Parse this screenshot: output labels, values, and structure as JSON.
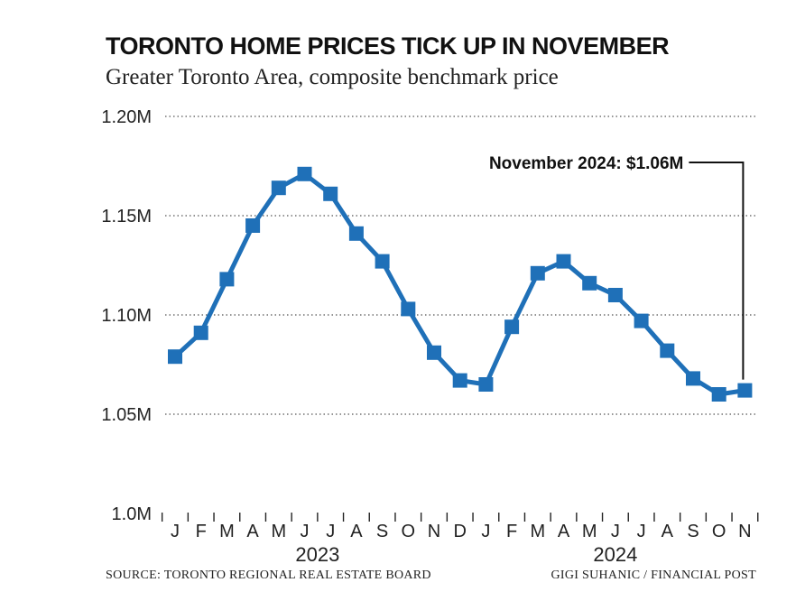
{
  "title": "TORONTO HOME PRICES TICK UP IN NOVEMBER",
  "subtitle": "Greater Toronto Area, composite benchmark price",
  "source": "SOURCE: TORONTO REGIONAL REAL ESTATE BOARD",
  "credit": "GIGI SUHANIC / FINANCIAL POST",
  "colors": {
    "series": "#1f70b8",
    "grid": "#555555",
    "text": "#222222"
  },
  "chart_data": {
    "type": "line",
    "y_tick_labels": [
      "1.20M",
      "1.15M",
      "1.10M",
      "1.05M",
      "1.0M"
    ],
    "y_tick_values": [
      1.2,
      1.15,
      1.1,
      1.05,
      1.0
    ],
    "ylim": [
      1.0,
      1.2
    ],
    "grid": "dotted horizontal",
    "categories": [
      "J",
      "F",
      "M",
      "A",
      "M",
      "J",
      "J",
      "A",
      "S",
      "O",
      "N",
      "D",
      "J",
      "F",
      "M",
      "A",
      "M",
      "J",
      "J",
      "A",
      "S",
      "O",
      "N"
    ],
    "years": [
      {
        "label": "2023",
        "start_index": 0,
        "end_index": 11
      },
      {
        "label": "2024",
        "start_index": 12,
        "end_index": 22
      }
    ],
    "series": [
      {
        "values": [
          1.079,
          1.091,
          1.118,
          1.145,
          1.164,
          1.171,
          1.161,
          1.141,
          1.127,
          1.103,
          1.081,
          1.067,
          1.065,
          1.094,
          1.121,
          1.127,
          1.116,
          1.11,
          1.097,
          1.082,
          1.068,
          1.06,
          1.062
        ]
      }
    ],
    "annotation": {
      "text": "November 2024: $1.06M",
      "point_index": 22
    }
  }
}
